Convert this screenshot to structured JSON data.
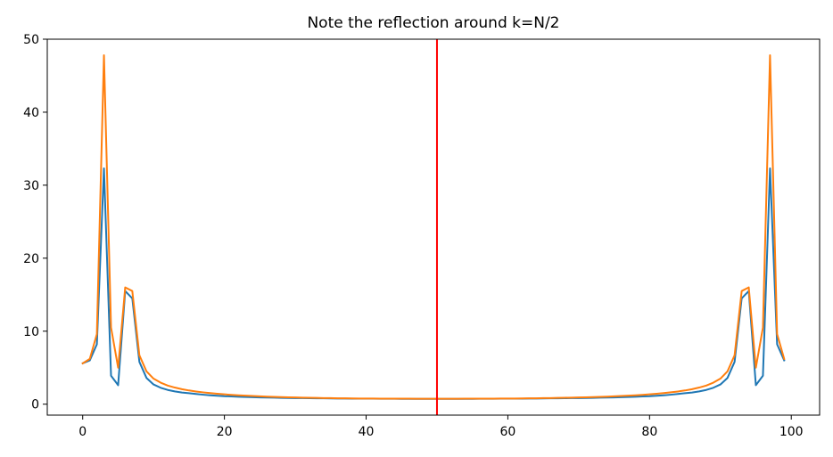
{
  "chart_data": {
    "type": "line",
    "title": "Note the reflection around k=N/2",
    "xlabel": "",
    "ylabel": "",
    "xlim": [
      -5,
      104
    ],
    "ylim": [
      -1.5,
      50
    ],
    "x_ticks": [
      0,
      20,
      40,
      60,
      80,
      100
    ],
    "y_ticks": [
      0,
      10,
      20,
      30,
      40,
      50
    ],
    "grid": false,
    "x": [
      0,
      1,
      2,
      3,
      4,
      5,
      6,
      7,
      8,
      9,
      10,
      11,
      12,
      13,
      14,
      15,
      16,
      17,
      18,
      19,
      20,
      21,
      22,
      23,
      24,
      25,
      26,
      27,
      28,
      29,
      30,
      31,
      32,
      33,
      34,
      35,
      36,
      37,
      38,
      39,
      40,
      41,
      42,
      43,
      44,
      45,
      46,
      47,
      48,
      49,
      50,
      51,
      52,
      53,
      54,
      55,
      56,
      57,
      58,
      59,
      60,
      61,
      62,
      63,
      64,
      65,
      66,
      67,
      68,
      69,
      70,
      71,
      72,
      73,
      74,
      75,
      76,
      77,
      78,
      79,
      80,
      81,
      82,
      83,
      84,
      85,
      86,
      87,
      88,
      89,
      90,
      91,
      92,
      93,
      94,
      95,
      96,
      97,
      98,
      99
    ],
    "series": [
      {
        "color": "#1f77b4",
        "values": [
          5.6,
          6.0,
          8.2,
          32.3,
          3.9,
          2.6,
          15.5,
          14.5,
          5.8,
          3.6,
          2.7,
          2.25,
          1.95,
          1.75,
          1.6,
          1.5,
          1.4,
          1.3,
          1.22,
          1.16,
          1.1,
          1.06,
          1.02,
          0.99,
          0.96,
          0.93,
          0.91,
          0.89,
          0.87,
          0.85,
          0.84,
          0.83,
          0.82,
          0.81,
          0.8,
          0.79,
          0.78,
          0.77,
          0.76,
          0.76,
          0.75,
          0.75,
          0.74,
          0.74,
          0.74,
          0.73,
          0.73,
          0.73,
          0.73,
          0.73,
          0.73,
          0.73,
          0.73,
          0.73,
          0.73,
          0.73,
          0.74,
          0.74,
          0.74,
          0.75,
          0.75,
          0.76,
          0.76,
          0.77,
          0.78,
          0.79,
          0.8,
          0.81,
          0.82,
          0.83,
          0.84,
          0.85,
          0.87,
          0.89,
          0.91,
          0.93,
          0.96,
          0.99,
          1.02,
          1.06,
          1.1,
          1.16,
          1.22,
          1.3,
          1.4,
          1.5,
          1.6,
          1.75,
          1.95,
          2.25,
          2.7,
          3.6,
          5.8,
          14.5,
          15.5,
          2.6,
          3.9,
          32.3,
          8.2,
          6.0
        ]
      },
      {
        "color": "#ff7f0e",
        "values": [
          5.6,
          6.2,
          9.6,
          47.8,
          10.5,
          5.0,
          16.0,
          15.5,
          6.7,
          4.5,
          3.5,
          2.95,
          2.55,
          2.28,
          2.05,
          1.88,
          1.74,
          1.62,
          1.52,
          1.43,
          1.35,
          1.28,
          1.22,
          1.17,
          1.12,
          1.08,
          1.04,
          1.0,
          0.97,
          0.94,
          0.92,
          0.9,
          0.88,
          0.86,
          0.84,
          0.83,
          0.81,
          0.8,
          0.79,
          0.78,
          0.77,
          0.77,
          0.76,
          0.76,
          0.75,
          0.75,
          0.75,
          0.74,
          0.74,
          0.74,
          0.74,
          0.74,
          0.74,
          0.74,
          0.75,
          0.75,
          0.75,
          0.76,
          0.76,
          0.77,
          0.77,
          0.78,
          0.79,
          0.8,
          0.81,
          0.83,
          0.84,
          0.86,
          0.88,
          0.9,
          0.92,
          0.94,
          0.97,
          1.0,
          1.04,
          1.08,
          1.12,
          1.17,
          1.22,
          1.28,
          1.35,
          1.43,
          1.52,
          1.62,
          1.74,
          1.88,
          2.05,
          2.28,
          2.55,
          2.95,
          3.5,
          4.5,
          6.7,
          15.5,
          16.0,
          5.0,
          10.5,
          47.8,
          9.6,
          6.2
        ]
      }
    ],
    "vline": {
      "x": 50,
      "color": "#ff0000"
    }
  }
}
